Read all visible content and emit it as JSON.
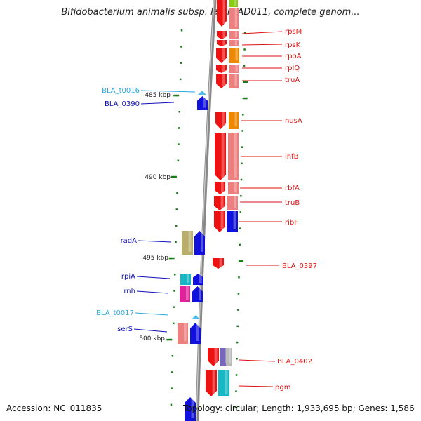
{
  "header": {
    "title": "Bifidobacterium animalis subsp. lactis AD011, complete genom..."
  },
  "footer": {
    "accession": "Accession: NC_011835",
    "topology": "Topology: circular; Length: 1,933,695 bp; Genes: 1,586"
  },
  "colors": {
    "red": "#ee1111",
    "salmon": "#ee7f7f",
    "orange": "#ee8800",
    "blue": "#1111dd",
    "navy": "#0a0aa8",
    "cyan": "#17b8c4",
    "magenta": "#e0239a",
    "khaki": "#b8ad6a",
    "purple": "#7766bb",
    "grey": "#bbbbbb",
    "lime": "#88cc11",
    "lightblue": "#55bbee",
    "tick_green": "#1a7a1a",
    "backbone": "#888888"
  },
  "scale_labels": [
    "485 kbp",
    "490 kbp",
    "495 kbp",
    "500 kbp"
  ],
  "right_labels": [
    "rpsM",
    "rpsK",
    "rpoA",
    "rplQ",
    "truA",
    "nusA",
    "infB",
    "rbfA",
    "truB",
    "ribF",
    "BLA_0397",
    "BLA_0402",
    "pgm"
  ],
  "left_labels": [
    "BLA_t0016",
    "BLA_0390",
    "radA",
    "rpiA",
    "rnh",
    "BLA_t0017",
    "serS"
  ]
}
